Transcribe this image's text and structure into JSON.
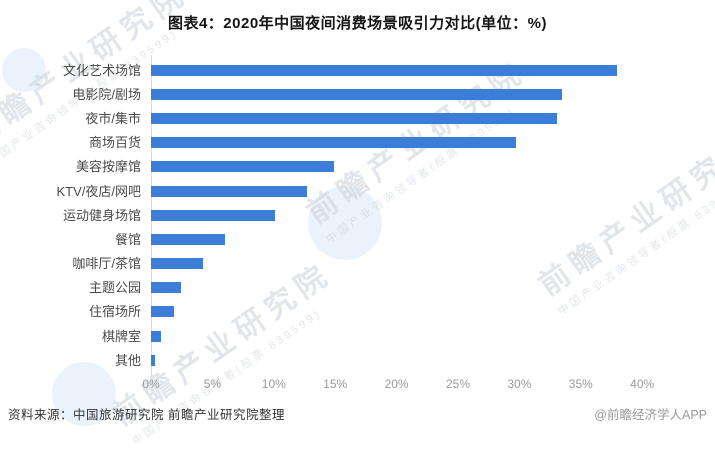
{
  "title": "图表4：2020年中国夜间消费场景吸引力对比(单位：%)",
  "source_note": "资料来源：中国旅游研究院 前瞻产业研究院整理",
  "credit": "@前瞻经济学人APP",
  "watermark": {
    "main": "前瞻产业研究院",
    "sub": "中国产业咨询领导者(股票:839599)"
  },
  "colors": {
    "bar": "#3c7dd8",
    "category_label": "#4a4a4a",
    "tick_label": "#9b9b9b",
    "axis_line": "#d9d9d9",
    "title_text": "#141414",
    "watermark": "#ccd3db"
  },
  "chart_data": {
    "type": "bar",
    "orientation": "horizontal",
    "title": "图表4：2020年中国夜间消费场景吸引力对比(单位：%)",
    "unit": "%",
    "categories": [
      "文化艺术场馆",
      "电影院/剧场",
      "夜市/集市",
      "商场百货",
      "美容按摩馆",
      "KTV/夜店/网吧",
      "运动健身场馆",
      "餐馆",
      "咖啡厅/茶馆",
      "主题公园",
      "住宿场所",
      "棋牌室",
      "其他"
    ],
    "values": [
      37.9,
      33.4,
      33.0,
      29.7,
      14.9,
      12.7,
      10.1,
      6.0,
      4.2,
      2.4,
      1.9,
      0.8,
      0.3
    ],
    "xlabel": "",
    "ylabel": "",
    "xlim": [
      0,
      40
    ],
    "x_ticks": [
      "0%",
      "5%",
      "10%",
      "15%",
      "20%",
      "25%",
      "30%",
      "35%",
      "40%"
    ],
    "grid": false,
    "legend": false
  }
}
